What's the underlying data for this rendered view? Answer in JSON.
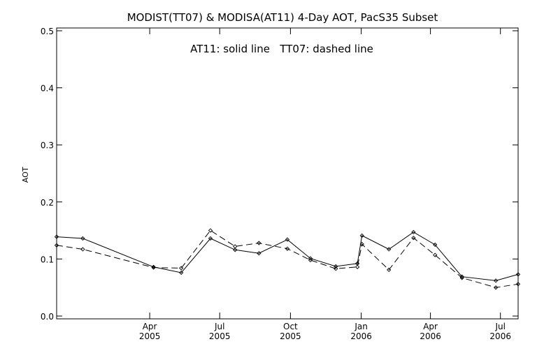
{
  "chart_data": {
    "type": "line",
    "title": "MODIST(TT07) & MODISA(AT11) 4-Day AOT, PacS35 Subset",
    "ylabel": "AOT",
    "xlabel": "",
    "annotation": "AT11: solid line   TT07: dashed line",
    "ylim": [
      0.0,
      0.5
    ],
    "yticks": [
      "0.0",
      "0.1",
      "0.2",
      "0.3",
      "0.4",
      "0.5"
    ],
    "xlim": [
      "2004-12-01",
      "2006-07-24"
    ],
    "xticks": [
      {
        "date": "2005-04-01",
        "month": "Apr",
        "year": "2005"
      },
      {
        "date": "2005-07-01",
        "month": "Jul",
        "year": "2005"
      },
      {
        "date": "2005-10-01",
        "month": "Oct",
        "year": "2005"
      },
      {
        "date": "2006-01-01",
        "month": "Jan",
        "year": "2006"
      },
      {
        "date": "2006-04-01",
        "month": "Apr",
        "year": "2006"
      },
      {
        "date": "2006-07-01",
        "month": "Jul",
        "year": "2006"
      }
    ],
    "grid": false,
    "series": [
      {
        "line_style": "solid",
        "points": [
          {
            "x": "2004-12-01",
            "y": 0.139
          },
          {
            "x": "2005-01-04",
            "y": 0.136
          },
          {
            "x": "2005-04-06",
            "y": 0.086
          },
          {
            "x": "2005-05-12",
            "y": 0.076
          },
          {
            "x": "2005-06-19",
            "y": 0.136
          },
          {
            "x": "2005-07-21",
            "y": 0.116
          },
          {
            "x": "2005-08-21",
            "y": 0.11
          },
          {
            "x": "2005-09-27",
            "y": 0.134
          },
          {
            "x": "2005-10-27",
            "y": 0.101
          },
          {
            "x": "2005-11-29",
            "y": 0.087
          },
          {
            "x": "2005-12-27",
            "y": 0.092
          },
          {
            "x": "2006-01-02",
            "y": 0.141
          },
          {
            "x": "2006-02-06",
            "y": 0.117
          },
          {
            "x": "2006-03-10",
            "y": 0.147
          },
          {
            "x": "2006-04-07",
            "y": 0.125
          },
          {
            "x": "2006-05-12",
            "y": 0.069
          },
          {
            "x": "2006-06-25",
            "y": 0.062
          },
          {
            "x": "2006-07-24",
            "y": 0.073
          }
        ]
      },
      {
        "line_style": "dashed",
        "points": [
          {
            "x": "2004-12-01",
            "y": 0.124
          },
          {
            "x": "2005-01-04",
            "y": 0.117
          },
          {
            "x": "2005-04-06",
            "y": 0.085
          },
          {
            "x": "2005-05-12",
            "y": 0.084
          },
          {
            "x": "2005-06-19",
            "y": 0.15
          },
          {
            "x": "2005-07-21",
            "y": 0.122
          },
          {
            "x": "2005-08-21",
            "y": 0.128
          },
          {
            "x": "2005-09-27",
            "y": 0.118
          },
          {
            "x": "2005-10-27",
            "y": 0.098
          },
          {
            "x": "2005-11-29",
            "y": 0.083
          },
          {
            "x": "2005-12-27",
            "y": 0.086
          },
          {
            "x": "2006-01-02",
            "y": 0.126
          },
          {
            "x": "2006-02-06",
            "y": 0.081
          },
          {
            "x": "2006-03-10",
            "y": 0.137
          },
          {
            "x": "2006-04-07",
            "y": 0.107
          },
          {
            "x": "2006-05-12",
            "y": 0.067
          },
          {
            "x": "2006-06-25",
            "y": 0.05
          },
          {
            "x": "2006-07-24",
            "y": 0.056
          }
        ]
      }
    ]
  }
}
